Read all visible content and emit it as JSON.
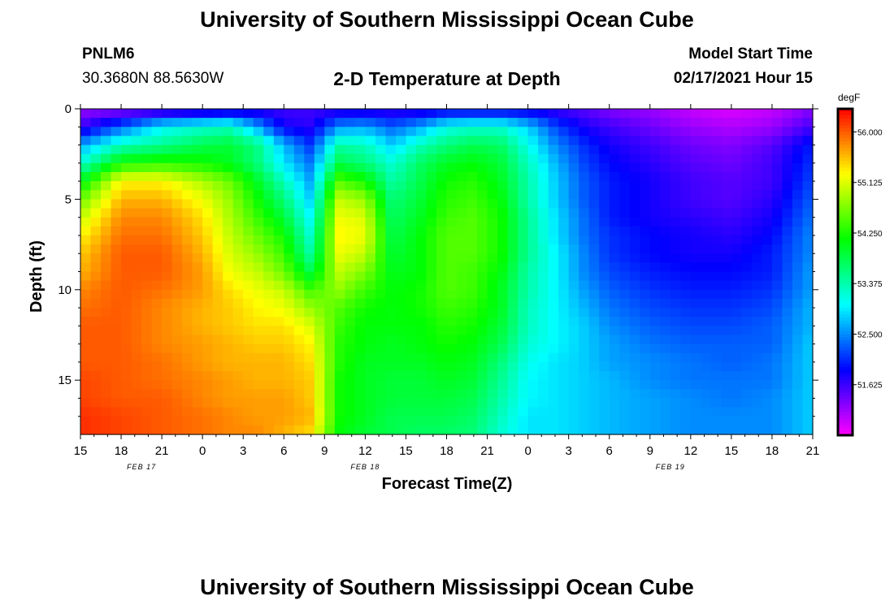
{
  "header": {
    "title": "University of Southern Mississippi Ocean Cube",
    "station": "PNLM6",
    "coordinates": "30.3680N 88.5630W",
    "subtitle": "2-D Temperature at Depth",
    "model_start_label": "Model Start Time",
    "model_start_value": "02/17/2021 Hour 15"
  },
  "footer": {
    "title": "University of Southern Mississippi Ocean Cube"
  },
  "colorbar": {
    "unit": "degF",
    "min": 50.75,
    "max": 56.4,
    "tick_values": [
      56.0,
      55.125,
      54.25,
      53.375,
      52.5,
      51.625
    ],
    "tick_labels": [
      "56.000",
      "55.125",
      "54.250",
      "53.375",
      "52.500",
      "51.625"
    ]
  },
  "chart_data": {
    "type": "heatmap",
    "title": "2-D Temperature at Depth",
    "xlabel": "Forecast Time(Z)",
    "ylabel": "Depth (ft)",
    "x_hours_range": [
      0,
      54
    ],
    "x_tick_labels": [
      "15",
      "18",
      "21",
      "0",
      "3",
      "6",
      "9",
      "12",
      "15",
      "18",
      "21",
      "0",
      "3",
      "6",
      "9",
      "12",
      "15",
      "18",
      "21"
    ],
    "date_labels": [
      {
        "label": "FEB 17",
        "hour": 4.5
      },
      {
        "label": "FEB 18",
        "hour": 21
      },
      {
        "label": "FEB 19",
        "hour": 43.5
      }
    ],
    "y_depth_range": [
      0,
      18
    ],
    "y_tick_values": [
      0,
      5,
      10,
      15
    ],
    "y_tick_labels": [
      "0",
      "5",
      "10",
      "15"
    ],
    "depth_levels_ft": [
      0,
      1,
      2,
      3,
      4,
      5,
      6,
      7,
      8,
      9,
      10,
      11,
      12,
      13,
      14,
      15,
      16,
      17,
      18
    ],
    "time_hours": [
      0,
      3,
      6,
      9,
      11,
      13,
      15,
      17,
      19,
      21,
      23,
      25,
      27,
      29,
      31,
      33,
      35,
      37,
      39,
      42,
      45,
      48,
      51,
      54
    ],
    "values_degF": [
      [
        51.2,
        51.2,
        51.3,
        51.4,
        51.5,
        51.6,
        51.6,
        51.6,
        51.6,
        51.6,
        51.6,
        51.6,
        51.7,
        51.7,
        51.7,
        51.7,
        51.6,
        51.5,
        51.3,
        51.2,
        51.0,
        50.9,
        51.0,
        51.3
      ],
      [
        51.6,
        52.3,
        53.0,
        53.2,
        53.3,
        52.6,
        51.8,
        51.7,
        52.5,
        52.6,
        52.3,
        52.6,
        53.1,
        53.2,
        53.2,
        52.8,
        52.2,
        51.8,
        51.6,
        51.4,
        51.2,
        51.1,
        51.2,
        51.6
      ],
      [
        52.6,
        53.3,
        53.5,
        53.8,
        53.9,
        53.6,
        52.7,
        52.1,
        53.4,
        53.3,
        52.8,
        53.3,
        53.6,
        53.8,
        53.7,
        53.1,
        52.5,
        52.1,
        51.8,
        51.6,
        51.4,
        51.3,
        51.5,
        52.0
      ],
      [
        53.2,
        54.2,
        54.3,
        54.2,
        54.0,
        53.6,
        52.9,
        52.4,
        53.8,
        53.6,
        53.2,
        53.7,
        54.0,
        54.1,
        53.9,
        53.3,
        52.7,
        52.2,
        51.9,
        51.7,
        51.5,
        51.4,
        51.6,
        52.1
      ],
      [
        54.0,
        55.3,
        55.3,
        54.9,
        54.6,
        54.0,
        53.3,
        52.6,
        54.5,
        54.2,
        53.4,
        53.8,
        54.2,
        54.3,
        54.0,
        53.4,
        52.8,
        52.3,
        52.0,
        51.8,
        51.6,
        51.5,
        51.6,
        52.2
      ],
      [
        54.6,
        55.6,
        55.6,
        55.2,
        54.8,
        54.2,
        53.6,
        52.8,
        55.0,
        54.8,
        53.6,
        53.9,
        54.3,
        54.4,
        54.1,
        53.4,
        52.8,
        52.3,
        52.0,
        51.8,
        51.6,
        51.5,
        51.7,
        52.3
      ],
      [
        55.0,
        55.8,
        55.8,
        55.4,
        54.9,
        54.4,
        53.9,
        53.0,
        55.2,
        55.1,
        53.7,
        54.0,
        54.4,
        54.5,
        54.2,
        53.5,
        52.9,
        52.4,
        52.0,
        51.8,
        51.7,
        51.6,
        51.8,
        52.4
      ],
      [
        55.3,
        55.9,
        55.9,
        55.5,
        55.0,
        54.6,
        54.2,
        53.2,
        55.3,
        55.2,
        53.8,
        54.1,
        54.5,
        54.5,
        54.2,
        53.5,
        52.9,
        52.4,
        52.1,
        51.9,
        51.8,
        51.7,
        51.9,
        52.5
      ],
      [
        55.5,
        56.0,
        56.0,
        55.6,
        55.1,
        54.8,
        54.4,
        53.4,
        55.2,
        55.0,
        53.9,
        54.1,
        54.5,
        54.5,
        54.2,
        53.5,
        53.0,
        52.5,
        52.1,
        51.9,
        51.8,
        51.8,
        52.0,
        52.5
      ],
      [
        55.6,
        56.0,
        56.0,
        55.7,
        55.2,
        55.0,
        54.6,
        53.8,
        55.0,
        54.7,
        54.0,
        54.1,
        54.5,
        54.4,
        54.1,
        53.4,
        53.0,
        52.5,
        52.2,
        52.0,
        51.9,
        51.9,
        52.0,
        52.6
      ],
      [
        55.8,
        56.0,
        55.9,
        55.7,
        55.4,
        55.2,
        55.0,
        54.4,
        54.8,
        54.4,
        54.1,
        54.2,
        54.5,
        54.4,
        54.0,
        53.4,
        53.0,
        52.6,
        52.3,
        52.1,
        52.0,
        52.0,
        52.1,
        52.6
      ],
      [
        55.9,
        56.0,
        55.8,
        55.6,
        55.5,
        55.3,
        55.2,
        54.8,
        54.5,
        54.2,
        54.1,
        54.2,
        54.4,
        54.3,
        54.0,
        53.3,
        53.0,
        52.7,
        52.4,
        52.2,
        52.1,
        52.1,
        52.2,
        52.7
      ],
      [
        56.0,
        56.0,
        55.8,
        55.6,
        55.5,
        55.4,
        55.4,
        55.1,
        54.4,
        54.1,
        54.1,
        54.1,
        54.3,
        54.2,
        53.9,
        53.3,
        53.0,
        52.8,
        52.5,
        52.3,
        52.2,
        52.2,
        52.3,
        52.7
      ],
      [
        56.0,
        56.0,
        55.8,
        55.7,
        55.6,
        55.5,
        55.5,
        55.3,
        54.3,
        54.1,
        54.0,
        54.1,
        54.2,
        54.1,
        53.8,
        53.2,
        53.0,
        52.8,
        52.6,
        52.4,
        52.3,
        52.3,
        52.3,
        52.8
      ],
      [
        56.0,
        56.0,
        55.9,
        55.7,
        55.6,
        55.6,
        55.6,
        55.4,
        54.3,
        54.0,
        54.0,
        54.0,
        54.1,
        54.0,
        53.6,
        53.1,
        52.9,
        52.8,
        52.6,
        52.5,
        52.4,
        52.3,
        52.4,
        52.8
      ],
      [
        56.1,
        56.0,
        55.9,
        55.8,
        55.7,
        55.6,
        55.6,
        55.5,
        54.2,
        54.0,
        53.9,
        53.9,
        54.0,
        53.9,
        53.5,
        53.0,
        52.9,
        52.8,
        52.7,
        52.5,
        52.4,
        52.4,
        52.4,
        52.8
      ],
      [
        56.1,
        56.0,
        56.0,
        55.8,
        55.7,
        55.7,
        55.7,
        55.5,
        54.2,
        54.0,
        53.9,
        53.9,
        53.9,
        53.8,
        53.4,
        53.0,
        52.9,
        52.8,
        52.7,
        52.6,
        52.5,
        52.4,
        52.5,
        52.8
      ],
      [
        56.2,
        56.1,
        56.0,
        55.9,
        55.8,
        55.7,
        55.7,
        55.6,
        54.2,
        54.0,
        53.8,
        53.8,
        53.8,
        53.7,
        53.3,
        52.9,
        52.9,
        52.8,
        52.7,
        52.6,
        52.5,
        52.5,
        52.5,
        52.8
      ],
      [
        56.2,
        56.1,
        56.0,
        55.9,
        55.8,
        55.8,
        55.6,
        55.4,
        54.1,
        53.9,
        53.8,
        53.7,
        53.7,
        53.6,
        53.2,
        52.9,
        52.9,
        52.8,
        52.7,
        52.6,
        52.5,
        52.5,
        52.5,
        52.8
      ]
    ]
  }
}
